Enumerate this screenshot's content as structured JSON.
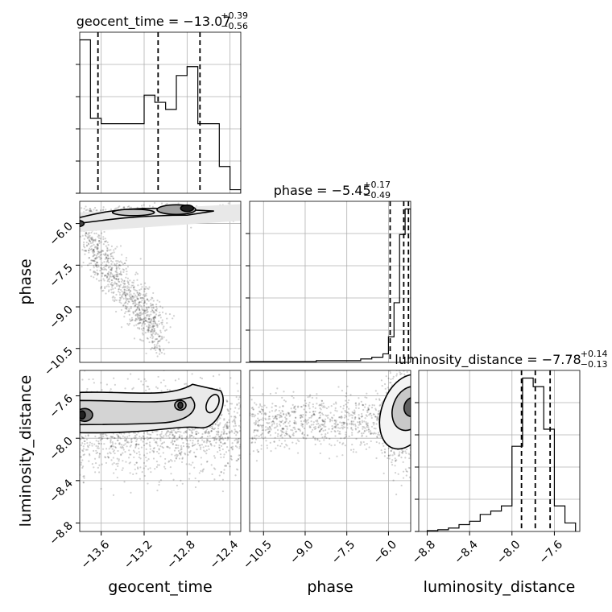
{
  "chart_data": {
    "type": "corner",
    "parameters": [
      "geocent_time",
      "phase",
      "luminosity_distance"
    ],
    "grid": true,
    "titles": [
      {
        "prefix": "geocent_time = ",
        "value": "−13.07",
        "plus": "+0.39",
        "minus": "−0.56"
      },
      {
        "prefix": "phase = ",
        "value": "−5.45",
        "plus": "+0.17",
        "minus": "−0.49"
      },
      {
        "prefix": "luminosity_distance = ",
        "value": "−7.78",
        "plus": "+0.14",
        "minus": "−0.13"
      }
    ],
    "axes": {
      "geocent_time": {
        "range": [
          -13.8,
          -12.3
        ],
        "ticks": [
          -13.6,
          -13.2,
          -12.8,
          -12.4
        ],
        "tick_labels": [
          "−13.6",
          "−13.2",
          "−12.8",
          "−12.4"
        ]
      },
      "phase": {
        "range": [
          -11.0,
          -5.2
        ],
        "ticks": [
          -10.5,
          -9.0,
          -7.5,
          -6.0
        ],
        "tick_labels": [
          "−10.5",
          "−9.0",
          "−7.5",
          "−6.0"
        ]
      },
      "luminosity_distance": {
        "range": [
          -8.88,
          -7.36
        ],
        "ticks": [
          -8.8,
          -8.4,
          -8.0,
          -7.6
        ],
        "tick_labels": [
          "−8.8",
          "−8.4",
          "−8.0",
          "−7.6"
        ]
      }
    },
    "histograms": [
      {
        "parameter": "geocent_time",
        "bin_edges": [
          -13.8,
          -13.7,
          -13.6,
          -13.5,
          -13.4,
          -13.3,
          -13.2,
          -13.1,
          -13.0,
          -12.9,
          -12.8,
          -12.7,
          -12.6,
          -12.5,
          -12.4,
          -12.3
        ],
        "counts": [
          0.86,
          0.42,
          0.39,
          0.39,
          0.39,
          0.39,
          0.55,
          0.51,
          0.47,
          0.66,
          0.71,
          0.39,
          0.39,
          0.15,
          0.02
        ],
        "quantiles": [
          -13.63,
          -13.07,
          -12.68
        ]
      },
      {
        "parameter": "phase",
        "bin_edges": [
          -11.0,
          -10.6,
          -10.2,
          -9.8,
          -9.4,
          -9.0,
          -8.6,
          -8.2,
          -7.8,
          -7.4,
          -7.0,
          -6.6,
          -6.2,
          -6.0,
          -5.8,
          -5.6,
          -5.4,
          -5.2
        ],
        "counts": [
          0.005,
          0.005,
          0.005,
          0.005,
          0.005,
          0.005,
          0.01,
          0.01,
          0.01,
          0.01,
          0.02,
          0.03,
          0.05,
          0.15,
          0.35,
          0.75,
          0.9
        ],
        "quantiles": [
          -5.94,
          -5.45,
          -5.28
        ]
      },
      {
        "parameter": "luminosity_distance",
        "bin_edges": [
          -8.8,
          -8.7,
          -8.6,
          -8.5,
          -8.4,
          -8.3,
          -8.2,
          -8.1,
          -8.0,
          -7.9,
          -7.8,
          -7.7,
          -7.6,
          -7.5,
          -7.4
        ],
        "counts": [
          0.005,
          0.01,
          0.02,
          0.04,
          0.06,
          0.1,
          0.12,
          0.15,
          0.5,
          0.9,
          0.85,
          0.6,
          0.15,
          0.05
        ],
        "quantiles": [
          -7.91,
          -7.78,
          -7.64
        ]
      }
    ],
    "contour_levels": 4,
    "pairs": [
      {
        "x": "geocent_time",
        "y": "phase"
      },
      {
        "x": "geocent_time",
        "y": "luminosity_distance"
      },
      {
        "x": "phase",
        "y": "luminosity_distance"
      }
    ]
  }
}
